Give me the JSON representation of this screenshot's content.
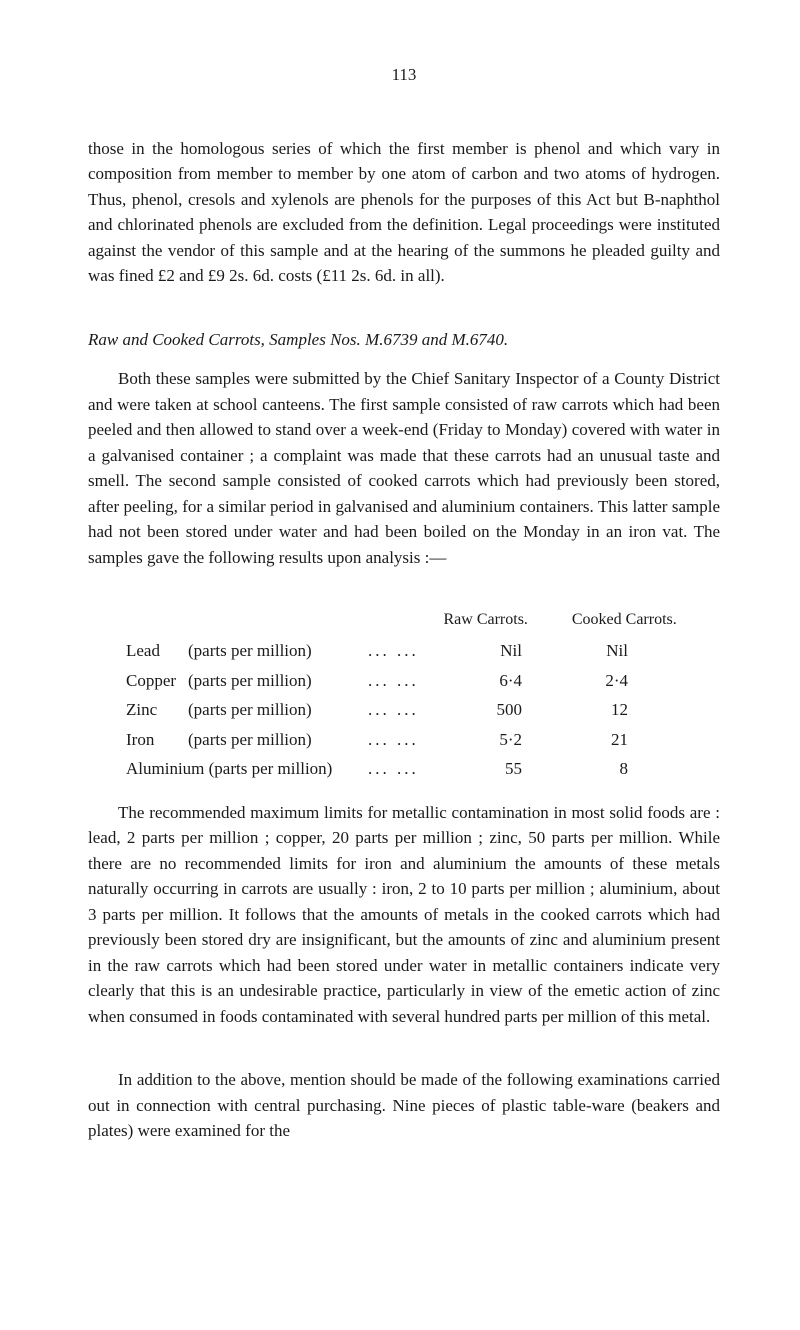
{
  "page_number": "113",
  "para1": "those in the homologous series of which the first member is phenol and which vary in composition from member to member by one atom of carbon and two atoms of hydrogen. Thus, phenol, cresols and xylenols are phenols for the purposes of this Act but B-naphthol and chlorinated phenols are excluded from the definition. Legal proceedings were instituted against the vendor of this sample and at the hearing of the summons he pleaded guilty and was fined £2 and £9 2s. 6d. costs (£11 2s. 6d. in all).",
  "heading1": "Raw and Cooked Carrots, Samples Nos. M.6739 and M.6740.",
  "para2": "Both these samples were submitted by the Chief Sanitary Inspector of a County District and were taken at school canteens. The first sample consisted of raw carrots which had been peeled and then allowed to stand over a week-end (Friday to Monday) covered with water in a galvanised container ; a complaint was made that these carrots had an unusual taste and smell. The second sample consisted of cooked carrots which had previously been stored, after peeling, for a similar period in galvanised and aluminium containers. This latter sample had not been stored under water and had been boiled on the Monday in an iron vat. The samples gave the following results upon analysis :—",
  "table": {
    "header_raw": "Raw Carrots.",
    "header_cooked": "Cooked Carrots.",
    "rows": [
      {
        "metal": "Lead",
        "desc": "(parts per million)",
        "dots": "...   ...",
        "raw": "Nil",
        "cooked": "Nil"
      },
      {
        "metal": "Copper",
        "desc": "(parts per million)",
        "dots": "...   ...",
        "raw": "6·4",
        "cooked": "2·4"
      },
      {
        "metal": "Zinc",
        "desc": "(parts per million)",
        "dots": "...   ...",
        "raw": "500",
        "cooked": "12"
      },
      {
        "metal": "Iron",
        "desc": "(parts per million)",
        "dots": "...   ...",
        "raw": "5·2",
        "cooked": "21"
      },
      {
        "metal": "Aluminium (parts per million)",
        "desc": "",
        "dots": "...   ...",
        "raw": "55",
        "cooked": "8"
      }
    ]
  },
  "para3": "The recommended maximum limits for metallic contamination in most solid foods are : lead, 2 parts per million ; copper, 20 parts per million ; zinc, 50 parts per million. While there are no recommended limits for iron and aluminium the amounts of these metals naturally occurring in carrots are usually : iron, 2 to 10 parts per million ; aluminium, about 3 parts per million. It follows that the amounts of metals in the cooked carrots which had previously been stored dry are insignificant, but the amounts of zinc and aluminium present in the raw carrots which had been stored under water in metallic containers indicate very clearly that this is an undesirable practice, particularly in view of the emetic action of zinc when consumed in foods contaminated with several hundred parts per million of this metal.",
  "para4": "In addition to the above, mention should be made of the following examinations carried out in connection with central purchasing. Nine pieces of plastic table-ware (beakers and plates) were examined for the"
}
